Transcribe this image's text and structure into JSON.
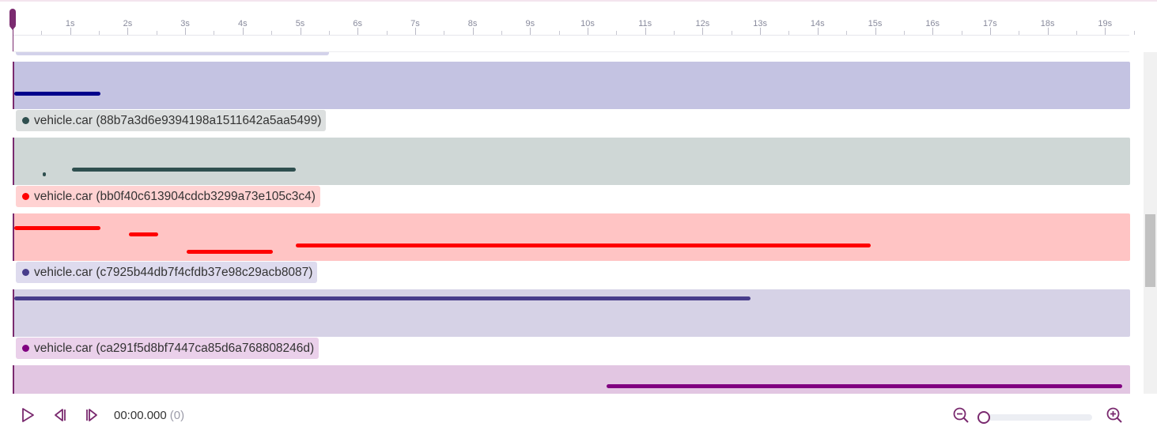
{
  "timeline": {
    "seconds_total": 19.5,
    "tick_labels": [
      "1s",
      "2s",
      "3s",
      "4s",
      "5s",
      "6s",
      "7s",
      "8s",
      "9s",
      "10s",
      "11s",
      "12s",
      "13s",
      "14s",
      "15s",
      "16s",
      "17s",
      "18s",
      "19s"
    ]
  },
  "tracks": [
    {
      "label": "",
      "dot_color": "",
      "label_bg": "#d3d2ea",
      "lane_bg": "#c4c3e2",
      "bar_color": "#00008b",
      "segments": [
        [
          0,
          1.5
        ]
      ],
      "partial": true
    },
    {
      "label": "vehicle.car (88b7a3d6e9394198a1511642a5aa5499)",
      "dot_color": "#2f4f4f",
      "label_bg": "#dcdfdf",
      "lane_bg": "#cfd7d6",
      "bar_color": "#2f4f4f",
      "segments": [
        [
          0.5,
          0.55
        ],
        [
          1.0,
          4.9
        ]
      ]
    },
    {
      "label": "vehicle.car (bb0f40c613904cdcb3299a73e105c3c4)",
      "dot_color": "#ff0000",
      "label_bg": "#ffd2d2",
      "lane_bg": "#ffc4c4",
      "bar_color": "#ff0000",
      "segments": [
        [
          0,
          1.5
        ],
        [
          2.0,
          2.5
        ],
        [
          3.0,
          4.5
        ],
        [
          4.9,
          14.9
        ]
      ]
    },
    {
      "label": "vehicle.car (c7925b44db7f4cfdb37e98c29acb8087)",
      "dot_color": "#483d8b",
      "label_bg": "#dedbee",
      "lane_bg": "#d6d2e6",
      "bar_color": "#483d8b",
      "segments": [
        [
          0,
          12.8
        ]
      ]
    },
    {
      "label": "vehicle.car (ca291f5d8bf7447ca85d6a768808246d)",
      "dot_color": "#800080",
      "label_bg": "#ead0ea",
      "lane_bg": "#e2c6e2",
      "bar_color": "#800080",
      "segments": [
        [
          10.3,
          19.3
        ]
      ]
    }
  ],
  "controls": {
    "time": "00:00.000",
    "frame": "(0)"
  }
}
